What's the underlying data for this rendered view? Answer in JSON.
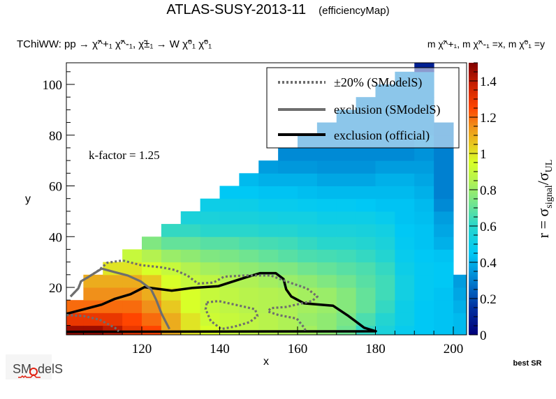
{
  "header": {
    "title": "ATLAS-SUSY-2013-11",
    "subtitle": "(efficiencyMap)",
    "process_label": "TChiWW: pp  → χ̃^+₁ χ̃^-₁, χ̃±₁ → W χ̃⁰₁ χ̃⁰₁",
    "mass_label": "m χ̃^+₁, m χ̃^-₁ =x, m χ̃⁰₁ =y"
  },
  "annotations": {
    "k_factor": "k-factor = 1.25",
    "best_sr": "best SR",
    "logo_text": "SModelS"
  },
  "chart_data": {
    "type": "heatmap",
    "title": "ATLAS-SUSY-2013-11",
    "xlabel": "x",
    "ylabel": "y",
    "zlabel": "r = σsignal/σUL",
    "zlabel_parts": {
      "main": "r = σ",
      "sub1": "signal",
      "slash": "/σ",
      "sub2": "UL"
    },
    "xlim": [
      100.6,
      203.4
    ],
    "ylim": [
      1.3,
      108.5
    ],
    "zlim": [
      0,
      1.5
    ],
    "x_ticks": [
      "120",
      "140",
      "160",
      "180",
      "200"
    ],
    "y_ticks": [
      "20",
      "40",
      "60",
      "80",
      "100"
    ],
    "z_ticks": [
      "0",
      "0.2",
      "0.4",
      "0.6",
      "0.8",
      "1",
      "1.2",
      "1.4"
    ],
    "colormap": [
      [
        0.0,
        "#00007a"
      ],
      [
        0.15,
        "#0030a0"
      ],
      [
        0.3,
        "#0080d0"
      ],
      [
        0.45,
        "#00c8f5"
      ],
      [
        0.6,
        "#28d6cc"
      ],
      [
        0.72,
        "#70e490"
      ],
      [
        0.85,
        "#b4f250"
      ],
      [
        0.95,
        "#d8ff28"
      ],
      [
        1.05,
        "#e8c820"
      ],
      [
        1.15,
        "#f0901a"
      ],
      [
        1.25,
        "#ff4500"
      ],
      [
        1.38,
        "#c82000"
      ],
      [
        1.5,
        "#800000"
      ]
    ],
    "cell_size": [
      5,
      5
    ],
    "columns": [
      {
        "x": 100,
        "values": [
          1.45,
          1.3,
          1.2
        ]
      },
      {
        "x": 105,
        "values": [
          1.45,
          1.3,
          1.2,
          1.15,
          1.1
        ]
      },
      {
        "x": 110,
        "values": [
          1.4,
          1.3,
          1.2,
          1.15,
          1.1,
          1.0
        ]
      },
      {
        "x": 115,
        "values": [
          1.3,
          1.25,
          1.2,
          1.15,
          1.1,
          1.0,
          0.9
        ]
      },
      {
        "x": 120,
        "values": [
          1.25,
          1.2,
          1.15,
          1.1,
          1.05,
          0.95,
          0.85,
          0.75
        ]
      },
      {
        "x": 125,
        "values": [
          1.1,
          1.1,
          1.05,
          1.0,
          0.95,
          0.9,
          0.8,
          0.7,
          0.62
        ]
      },
      {
        "x": 130,
        "values": [
          1.0,
          1.0,
          0.95,
          0.95,
          0.9,
          0.85,
          0.78,
          0.7,
          0.62,
          0.55
        ]
      },
      {
        "x": 135,
        "values": [
          0.95,
          0.92,
          0.9,
          0.9,
          0.88,
          0.82,
          0.75,
          0.68,
          0.6,
          0.55,
          0.5
        ]
      },
      {
        "x": 140,
        "values": [
          0.9,
          0.9,
          0.88,
          0.88,
          0.85,
          0.8,
          0.74,
          0.68,
          0.6,
          0.54,
          0.5,
          0.45
        ]
      },
      {
        "x": 145,
        "values": [
          0.88,
          0.88,
          0.86,
          0.86,
          0.84,
          0.78,
          0.72,
          0.66,
          0.6,
          0.54,
          0.5,
          0.45,
          0.42
        ]
      },
      {
        "x": 150,
        "values": [
          0.86,
          0.86,
          0.85,
          0.85,
          0.82,
          0.76,
          0.7,
          0.65,
          0.58,
          0.53,
          0.48,
          0.44,
          0.4,
          0.36
        ]
      },
      {
        "x": 155,
        "values": [
          0.84,
          0.84,
          0.84,
          0.84,
          0.8,
          0.75,
          0.68,
          0.64,
          0.58,
          0.52,
          0.48,
          0.44,
          0.4,
          0.35,
          0.32
        ]
      },
      {
        "x": 160,
        "values": [
          0.82,
          0.8,
          0.82,
          0.82,
          0.78,
          0.72,
          0.66,
          0.62,
          0.56,
          0.52,
          0.47,
          0.43,
          0.4,
          0.35,
          0.32,
          0.3
        ]
      },
      {
        "x": 165,
        "values": [
          0.78,
          0.78,
          0.8,
          0.8,
          0.75,
          0.7,
          0.65,
          0.6,
          0.55,
          0.5,
          0.46,
          0.42,
          0.38,
          0.34,
          0.32,
          0.3,
          0.3
        ]
      },
      {
        "x": 170,
        "values": [
          0.72,
          0.74,
          0.76,
          0.76,
          0.72,
          0.68,
          0.64,
          0.6,
          0.55,
          0.5,
          0.46,
          0.42,
          0.38,
          0.34,
          0.32,
          0.3,
          0.3,
          0.3
        ]
      },
      {
        "x": 175,
        "values": [
          0.62,
          0.66,
          0.7,
          0.7,
          0.68,
          0.66,
          0.62,
          0.58,
          0.54,
          0.5,
          0.45,
          0.42,
          0.38,
          0.34,
          0.32,
          0.3,
          0.3,
          0.3,
          0.3
        ]
      },
      {
        "x": 180,
        "values": [
          0.55,
          0.58,
          0.62,
          0.64,
          0.64,
          0.62,
          0.58,
          0.55,
          0.52,
          0.48,
          0.44,
          0.42,
          0.4,
          0.36,
          0.32,
          0.3,
          0.3,
          0.3,
          0.3,
          0.3
        ]
      },
      {
        "x": 185,
        "values": [
          0.48,
          0.5,
          0.5,
          0.52,
          0.52,
          0.5,
          0.48,
          0.46,
          0.45,
          0.44,
          0.44,
          0.42,
          0.4,
          0.36,
          0.32,
          0.3,
          0.3,
          0.3,
          0.3,
          0.3,
          0.3
        ]
      },
      {
        "x": 190,
        "values": [
          0.45,
          0.45,
          0.45,
          0.46,
          0.46,
          0.46,
          0.45,
          0.44,
          0.44,
          0.43,
          0.42,
          0.4,
          0.38,
          0.36,
          0.34,
          0.32,
          0.3,
          0.3,
          0.3,
          0.3,
          0.3,
          0.1
        ]
      },
      {
        "x": 195,
        "values": [
          0.44,
          0.44,
          0.44,
          0.44,
          0.45,
          0.45,
          0.44,
          0.4,
          0.38,
          0.36,
          0.32,
          0.3,
          0.3,
          0.3,
          0.3,
          0.28,
          0.28
        ]
      },
      {
        "x": 200,
        "values": [
          0.42,
          0.42,
          0.4,
          0.38,
          0.36
        ]
      }
    ],
    "legend": {
      "placement": "top-right",
      "entries": [
        {
          "label": "±20% (SModelS)",
          "style": "dotted",
          "color": "#6e6e6e"
        },
        {
          "label": "exclusion (SModelS)",
          "style": "solid",
          "color": "#6e6e6e"
        },
        {
          "label": "exclusion (official)",
          "style": "solid",
          "color": "#000000"
        }
      ]
    },
    "contours": [
      {
        "name": "exclusion (official)",
        "style": "solid",
        "color": "#000000",
        "points": [
          [
            100.7,
            9.6
          ],
          [
            109.7,
            13.2
          ],
          [
            113.1,
            15.5
          ],
          [
            117.1,
            17.3
          ],
          [
            120.7,
            20.1
          ],
          [
            127.7,
            18.7
          ],
          [
            133.1,
            19.8
          ],
          [
            139.7,
            20.5
          ],
          [
            146.4,
            23.8
          ],
          [
            150.4,
            25.6
          ],
          [
            154.4,
            25.6
          ],
          [
            156.4,
            23.3
          ],
          [
            157.1,
            19.2
          ],
          [
            158.4,
            16.4
          ],
          [
            161.7,
            13.7
          ],
          [
            169.1,
            12.8
          ],
          [
            173.1,
            8.7
          ],
          [
            177.1,
            4.1
          ],
          [
            180.1,
            2.7
          ],
          [
            100.7,
            2.5
          ]
        ]
      },
      {
        "name": "exclusion (SModelS)",
        "style": "solid",
        "color": "#6e6e6e",
        "points": [
          [
            101.7,
            16.4
          ],
          [
            103.7,
            19.6
          ],
          [
            104.4,
            22.4
          ],
          [
            106.4,
            24.2
          ],
          [
            109.7,
            27.4
          ],
          [
            113.1,
            26.0
          ],
          [
            116.4,
            24.7
          ],
          [
            119.7,
            22.4
          ],
          [
            122.4,
            19.2
          ],
          [
            123.7,
            15.1
          ],
          [
            125.1,
            9.6
          ],
          [
            127.1,
            3.6
          ]
        ]
      },
      {
        "name": "±20% (SModelS)",
        "style": "dotted",
        "color": "#6e6e6e",
        "points": [
          [
            101.7,
            16.4
          ],
          [
            103.7,
            19.6
          ],
          [
            104.4,
            22.4
          ],
          [
            106.4,
            24.2
          ],
          [
            109.1,
            26.9
          ],
          [
            111.1,
            29.7
          ],
          [
            115.1,
            30.6
          ],
          [
            119.7,
            28.8
          ],
          [
            125.1,
            27.9
          ],
          [
            128.4,
            26.9
          ],
          [
            131.7,
            24.7
          ],
          [
            134.4,
            21.5
          ],
          [
            138.4,
            21.9
          ],
          [
            141.1,
            24.2
          ],
          [
            146.4,
            24.7
          ],
          [
            153.1,
            24.7
          ],
          [
            157.1,
            22.4
          ],
          [
            162.4,
            19.6
          ],
          [
            165.1,
            16.4
          ],
          [
            163.7,
            14.6
          ],
          [
            161.1,
            13.7
          ],
          [
            157.1,
            12.3
          ],
          [
            153.1,
            11.8
          ],
          [
            152.4,
            10.5
          ],
          [
            155.1,
            9.1
          ],
          [
            159.8,
            7.7
          ],
          [
            161.7,
            4.1
          ],
          [
            162.1,
            2.7
          ]
        ]
      },
      {
        "name": "±20% (SModelS)",
        "style": "dotted",
        "color": "#6e6e6e",
        "points": [
          [
            136.7,
            14.1
          ],
          [
            139.7,
            14.6
          ],
          [
            145.1,
            12.8
          ],
          [
            149.1,
            11.4
          ],
          [
            149.7,
            8.7
          ],
          [
            147.7,
            6.3
          ],
          [
            143.7,
            4.5
          ],
          [
            140.4,
            3.6
          ],
          [
            137.7,
            6.8
          ],
          [
            136.4,
            11.4
          ],
          [
            136.7,
            14.1
          ]
        ]
      },
      {
        "name": "±20% (SModelS)",
        "style": "dotted",
        "color": "#6e6e6e",
        "points": [
          [
            100.7,
            9.1
          ],
          [
            105.1,
            8.7
          ],
          [
            109.1,
            7.3
          ],
          [
            113.1,
            4.1
          ],
          [
            114.1,
            2.7
          ]
        ]
      }
    ]
  }
}
